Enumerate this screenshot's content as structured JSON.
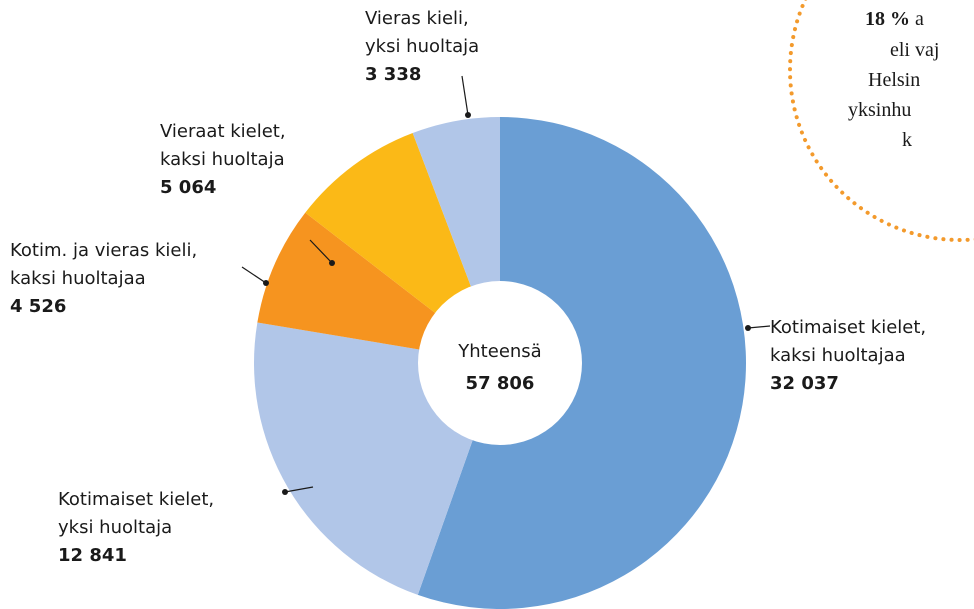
{
  "chart_data": {
    "type": "donut",
    "categories": [
      [
        "Kotimaiset kielet,",
        "kaksi huoltajaa"
      ],
      [
        "Kotimaiset kielet,",
        "yksi huoltaja"
      ],
      [
        "Kotim. ja vieras kieli,",
        "kaksi huoltajaa"
      ],
      [
        "Vieraat kielet,",
        "kaksi huoltaja"
      ],
      [
        "Vieras kieli,",
        "yksi huoltaja"
      ]
    ],
    "values": [
      32037,
      12841,
      4526,
      5064,
      3338
    ],
    "value_labels": [
      "32 037",
      "12 841",
      "4 526",
      "5 064",
      "3 338"
    ],
    "colors": [
      "#6a9ed4",
      "#b1c6e8",
      "#f6941f",
      "#fbb917",
      "#b1c6e8"
    ],
    "center": {
      "title": "Yhteensä",
      "value_label": "57 806"
    },
    "annotation": {
      "lead": "18 %",
      "lines": [
        "a",
        "eli vaj",
        "Helsin",
        "yksinhu",
        "k"
      ]
    }
  }
}
